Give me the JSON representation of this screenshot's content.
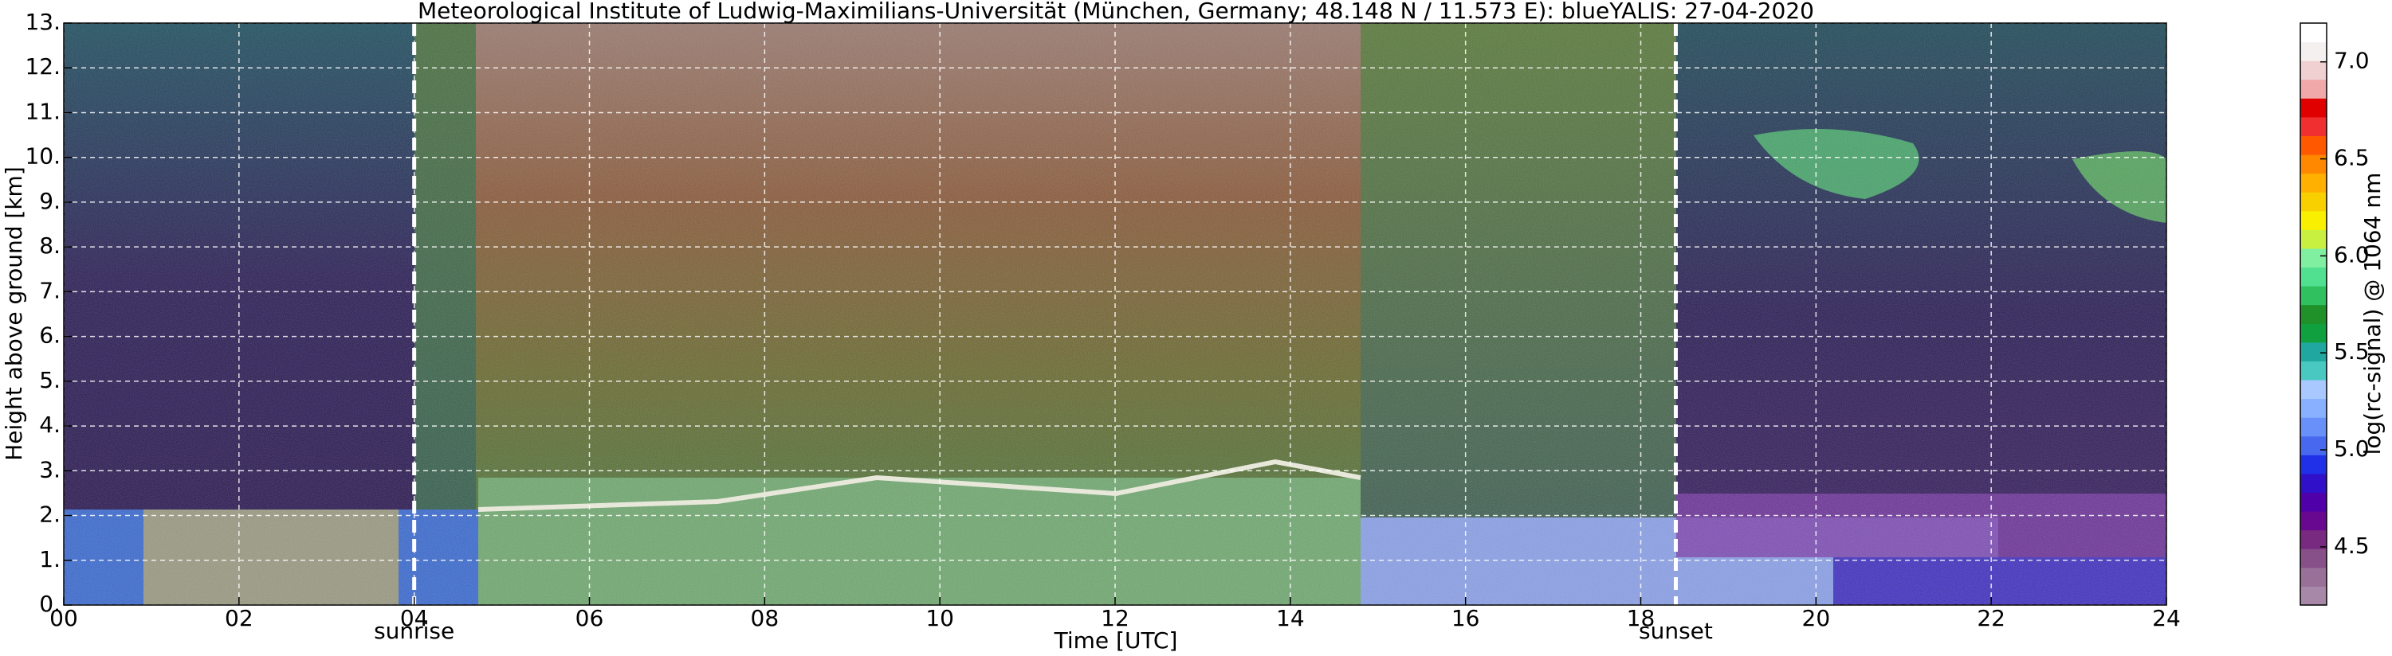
{
  "chart_data": {
    "type": "heatmap",
    "title": "Meteorological Institute of Ludwig-Maximilians-Universität (München, Germany; 48.148 N / 11.573 E):    blueYALIS: 27-04-2020",
    "xlabel": "Time [UTC]",
    "ylabel": "Height above ground [km]",
    "xlim": [
      0,
      24
    ],
    "xticks": [
      {
        "value": 0,
        "label": "00"
      },
      {
        "value": 2,
        "label": "02"
      },
      {
        "value": 4,
        "label": "04"
      },
      {
        "value": 6,
        "label": "06"
      },
      {
        "value": 8,
        "label": "08"
      },
      10,
      12,
      14,
      16,
      18,
      20,
      22,
      24
    ],
    "ylim": [
      0,
      13
    ],
    "yticks": [
      {
        "value": 0,
        "label": "0."
      },
      {
        "value": 1,
        "label": "1."
      },
      {
        "value": 2,
        "label": "2."
      },
      {
        "value": 3,
        "label": "3."
      },
      {
        "value": 4,
        "label": "4."
      },
      {
        "value": 5,
        "label": "5."
      },
      {
        "value": 6,
        "label": "6."
      },
      {
        "value": 7,
        "label": "7."
      },
      {
        "value": 8,
        "label": "8."
      },
      {
        "value": 9,
        "label": "9."
      },
      {
        "value": 10,
        "label": "10."
      },
      {
        "value": 11,
        "label": "11."
      },
      {
        "value": 12,
        "label": "12."
      },
      {
        "value": 13,
        "label": "13."
      }
    ],
    "grid": true,
    "annotations": [
      {
        "x": 4.0,
        "text": "sunrise"
      },
      {
        "x": 18.4,
        "text": "sunset"
      }
    ],
    "colorbar": {
      "label": "log(rc-signal) @ 1064 nm",
      "lim": [
        4.2,
        7.2
      ],
      "ticks": [
        4.5,
        {
          "value": 5.0,
          "label": "5.0"
        },
        5.5,
        {
          "value": 6.0,
          "label": "6.0"
        },
        6.5,
        {
          "value": 7.0,
          "label": "7.0"
        }
      ],
      "colors": [
        "#a888a8",
        "#987098",
        "#885088",
        "#782a80",
        "#680890",
        "#5000a8",
        "#3010c8",
        "#2030e8",
        "#4868f0",
        "#6890f8",
        "#88b0ff",
        "#a8c8ff",
        "#48c8c0",
        "#20a8a0",
        "#10a040",
        "#209028",
        "#30c060",
        "#50e090",
        "#80f0a0",
        "#c8f040",
        "#f8f000",
        "#f8d000",
        "#ffb000",
        "#ff8800",
        "#ff5800",
        "#f03030",
        "#e00000",
        "#f0a8a8",
        "#f0d0d0",
        "#f4f0f0",
        "#ffffff"
      ]
    }
  }
}
